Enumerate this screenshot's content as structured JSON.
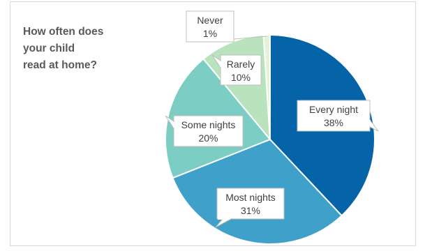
{
  "chart_data": {
    "type": "pie",
    "title_lines": [
      "How often does",
      "your child",
      "read at home?"
    ],
    "slices": [
      {
        "label": "Every night",
        "value": 38,
        "value_label": "38%",
        "color": "#0563a8"
      },
      {
        "label": "Most nights",
        "value": 31,
        "value_label": "31%",
        "color": "#3fa0ca"
      },
      {
        "label": "Some nights",
        "value": 20,
        "value_label": "20%",
        "color": "#7ccdc3"
      },
      {
        "label": "Rarely",
        "value": 10,
        "value_label": "10%",
        "color": "#b9e3bd"
      },
      {
        "label": "Never",
        "value": 1,
        "value_label": "1%",
        "color": "#e4f4da"
      }
    ],
    "legend": "none",
    "data_labels": "callouts"
  }
}
